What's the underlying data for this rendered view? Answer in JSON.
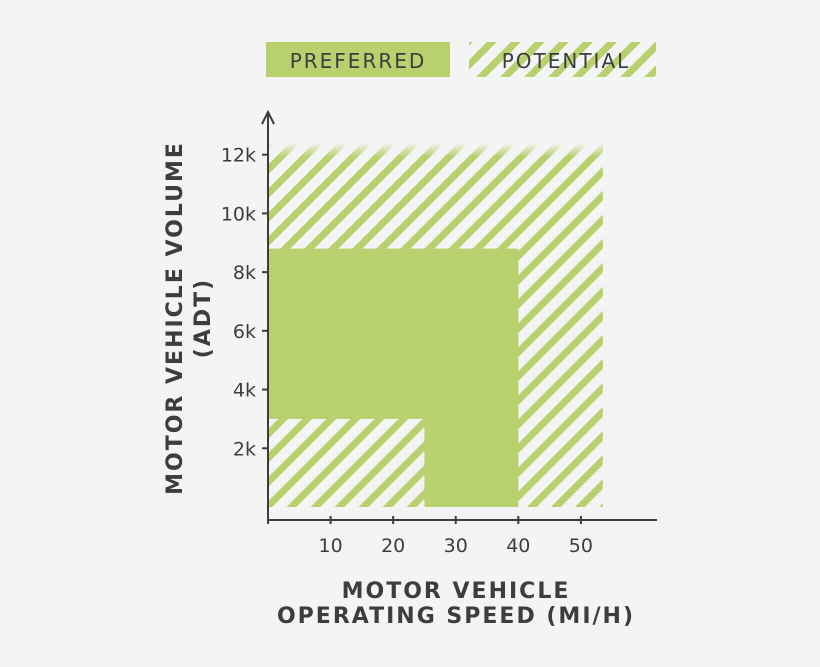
{
  "chart_data": {
    "type": "area",
    "xlabel_lines": [
      "MOTOR VEHICLE",
      "OPERATING SPEED (MI/H)"
    ],
    "ylabel_lines": [
      "MOTOR VEHICLE VOLUME",
      "(ADT)"
    ],
    "x_ticks": [
      10,
      20,
      30,
      40,
      50
    ],
    "x_tick_labels": [
      "10",
      "20",
      "30",
      "40",
      "50"
    ],
    "y_ticks": [
      2000,
      4000,
      6000,
      8000,
      10000,
      12000
    ],
    "y_tick_labels": [
      "2k",
      "4k",
      "6k",
      "8k",
      "10k",
      "12k"
    ],
    "xlim": [
      0,
      62
    ],
    "ylim": [
      0,
      12500
    ],
    "legend": {
      "position": "top",
      "entries": [
        {
          "label": "PREFERRED",
          "style": "solid"
        },
        {
          "label": "POTENTIAL",
          "style": "hatched"
        }
      ]
    },
    "regions": [
      {
        "series": "POTENTIAL",
        "x": [
          0,
          53.5
        ],
        "y": [
          0,
          12400
        ]
      },
      {
        "series": "PREFERRED",
        "x": [
          0,
          40
        ],
        "y": [
          3000,
          8800
        ]
      },
      {
        "series": "PREFERRED",
        "x": [
          25,
          40
        ],
        "y": [
          0,
          3000
        ]
      }
    ],
    "grid": false,
    "colors": {
      "preferred": "#b8d06e",
      "potential_stripe": "#b8d06e",
      "background": "#f4f4f4",
      "axis": "#3d3d3f"
    }
  }
}
